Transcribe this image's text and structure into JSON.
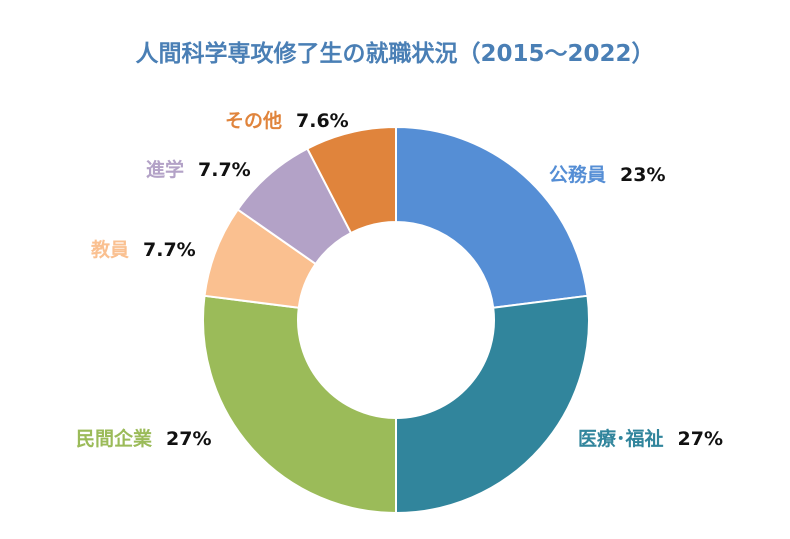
{
  "chart_data": {
    "type": "pie",
    "donut": true,
    "title": "人間科学専攻修了生の就職状況（2015～2022）",
    "series": [
      {
        "label": "公務員",
        "value": 23,
        "display": "23%",
        "color": "#558ed5"
      },
      {
        "label": "医療･福祉",
        "value": 27,
        "display": "27%",
        "color": "#31859c"
      },
      {
        "label": "民間企業",
        "value": 27,
        "display": "27%",
        "color": "#9bbb59"
      },
      {
        "label": "教員",
        "value": 7.7,
        "display": "7.7%",
        "color": "#fac090"
      },
      {
        "label": "進学",
        "value": 7.7,
        "display": "7.7%",
        "color": "#b3a2c7"
      },
      {
        "label": "その他",
        "value": 7.6,
        "display": "7.6%",
        "color": "#e0843c"
      }
    ]
  }
}
